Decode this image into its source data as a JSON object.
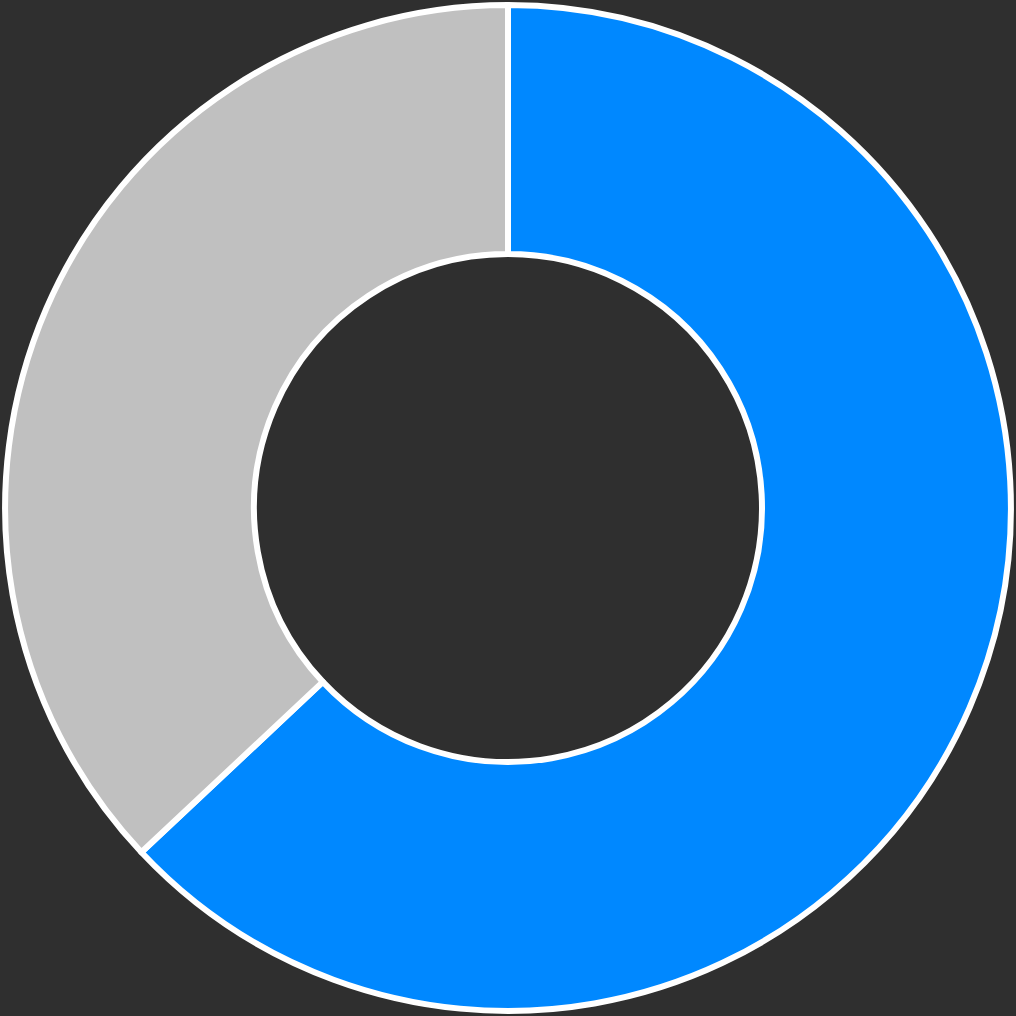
{
  "chart_data": {
    "type": "donut",
    "categories": [
      null,
      null
    ],
    "values": [
      63,
      37
    ],
    "colors": [
      "#0088ff",
      "#c0c0c0"
    ]
  }
}
